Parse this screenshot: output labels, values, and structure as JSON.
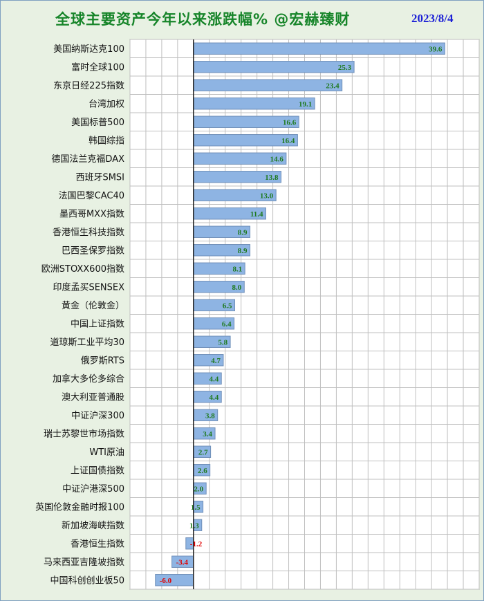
{
  "chart_data": {
    "type": "bar",
    "orientation": "horizontal",
    "title": "全球主要资产今年以来涨跌幅% @宏赫臻财",
    "date": "2023/8/4",
    "xlim": [
      -10,
      45
    ],
    "grid": true,
    "colors": {
      "bar": "#8eb4e3",
      "bar_edge": "#6f8fb8",
      "positive_label": "#1f7a1f",
      "negative_label": "#e00000",
      "grid": "#bfbfbf",
      "title": "#17852a",
      "date": "#1b1fd6"
    },
    "categories": [
      "美国纳斯达克100",
      "富时全球100",
      "东京日经225指数",
      "台湾加权",
      "美国标普500",
      "韩国综指",
      "德国法兰克福DAX",
      "西班牙SMSI",
      "法国巴黎CAC40",
      "墨西哥MXX指数",
      "香港恒生科技指数",
      "巴西圣保罗指数",
      "欧洲STOXX600指数",
      "印度孟买SENSEX",
      "黄金（伦敦金）",
      "中国上证指数",
      "道琼斯工业平均30",
      "俄罗斯RTS",
      "加拿大多伦多综合",
      "澳大利亚普通股",
      "中证沪深300",
      "瑞士苏黎世市场指数",
      "WTI原油",
      "上证国债指数",
      "中证沪港深500",
      "英国伦敦金融时报100",
      "新加坡海峡指数",
      "香港恒生指数",
      "马来西亚吉隆坡指数",
      "中国科创创业板50"
    ],
    "values": [
      39.6,
      25.3,
      23.4,
      19.1,
      16.6,
      16.4,
      14.6,
      13.8,
      13.0,
      11.4,
      8.9,
      8.9,
      8.1,
      8.0,
      6.5,
      6.4,
      5.8,
      4.7,
      4.4,
      4.4,
      3.8,
      3.4,
      2.7,
      2.6,
      2.0,
      1.5,
      1.3,
      -1.2,
      -3.4,
      -6.0
    ],
    "labels": [
      "39.6",
      "25.3",
      "23.4",
      "19.1",
      "16.6",
      "16.4",
      "14.6",
      "13.8",
      "13.0",
      "11.4",
      "8.9",
      "8.9",
      "8.1",
      "8.0",
      "6.5",
      "6.4",
      "5.8",
      "4.7",
      "4.4",
      "4.4",
      "3.8",
      "3.4",
      "2.7",
      "2.6",
      "2.0",
      "1.5",
      "1.3",
      "-1.2",
      "-3.4",
      "-6.0"
    ]
  }
}
